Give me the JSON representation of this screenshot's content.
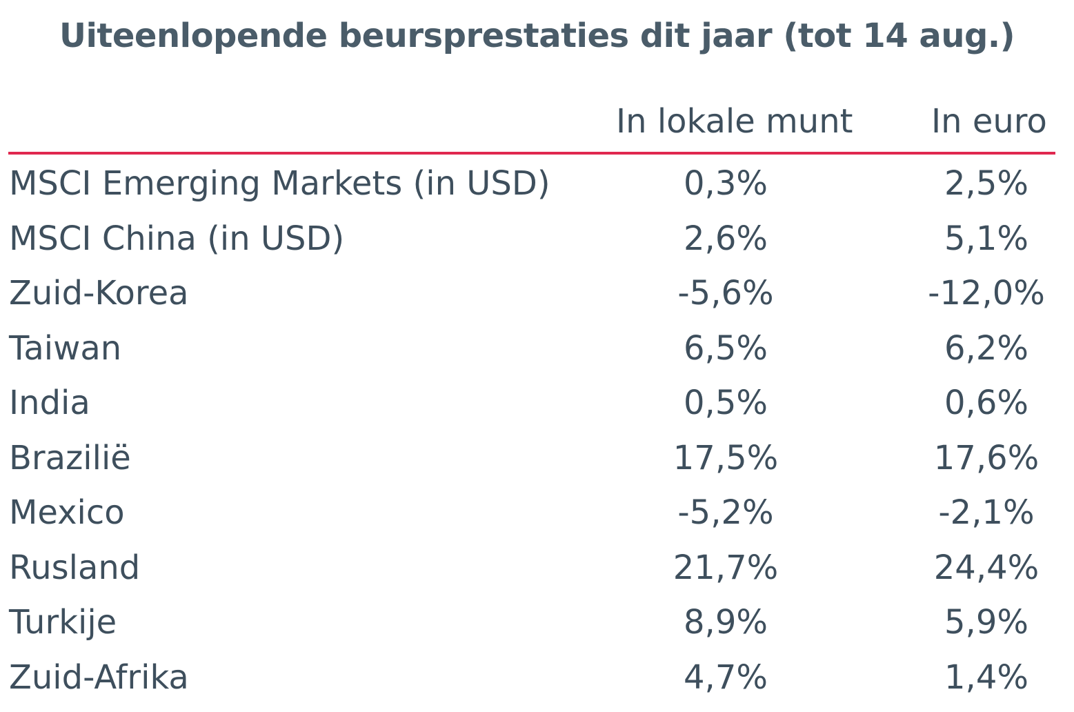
{
  "title": "Uiteenlopende beursprestaties dit jaar (tot 14 aug.)",
  "columns": {
    "local": "In lokale munt",
    "euro": "In euro"
  },
  "accent_color": "#e0284f",
  "text_color": "#3e4f5d",
  "rows": [
    {
      "name": "MSCI Emerging Markets (in USD)",
      "local": "0,3%",
      "euro": "2,5%"
    },
    {
      "name": "MSCI China (in USD)",
      "local": "2,6%",
      "euro": "5,1%"
    },
    {
      "name": "Zuid-Korea",
      "local": "-5,6%",
      "euro": "-12,0%"
    },
    {
      "name": "Taiwan",
      "local": "6,5%",
      "euro": "6,2%"
    },
    {
      "name": "India",
      "local": "0,5%",
      "euro": "0,6%"
    },
    {
      "name": "Braziliё",
      "local": "17,5%",
      "euro": "17,6%"
    },
    {
      "name": "Mexico",
      "local": "-5,2%",
      "euro": "-2,1%"
    },
    {
      "name": "Rusland",
      "local": "21,7%",
      "euro": "24,4%"
    },
    {
      "name": "Turkije",
      "local": "8,9%",
      "euro": "5,9%"
    },
    {
      "name": "Zuid-Afrika",
      "local": "4,7%",
      "euro": "1,4%"
    }
  ]
}
